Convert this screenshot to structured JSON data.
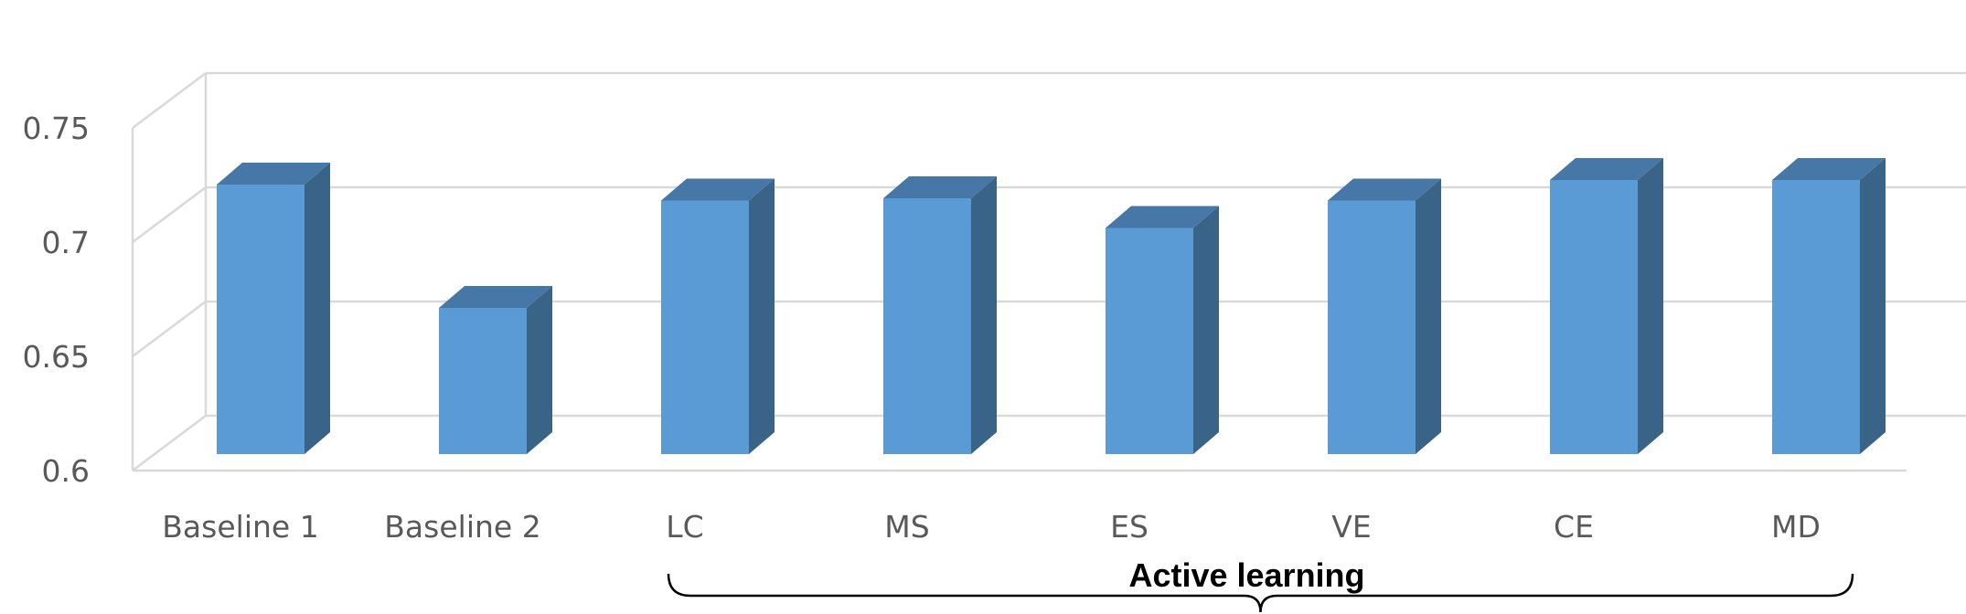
{
  "chart_data": {
    "type": "bar",
    "style": "3d-column",
    "categories": [
      "Baseline 1",
      "Baseline 2",
      "LC",
      "MS",
      "ES",
      "VE",
      "CE",
      "MD"
    ],
    "values": [
      0.718,
      0.664,
      0.711,
      0.712,
      0.699,
      0.711,
      0.72,
      0.72
    ],
    "ylim": [
      0.6,
      0.75
    ],
    "yticks": [
      "0.6",
      "0.65",
      "0.7",
      "0.75"
    ],
    "grid": true,
    "annotation": {
      "text": "Active learning",
      "from_category": "LC",
      "to_category": "MD"
    },
    "colors": {
      "bar_front": "#5b9bd5",
      "bar_side": "#3a6487",
      "bar_top": "#4677a6",
      "grid": "#d9d9d9",
      "text": "#595959"
    }
  }
}
